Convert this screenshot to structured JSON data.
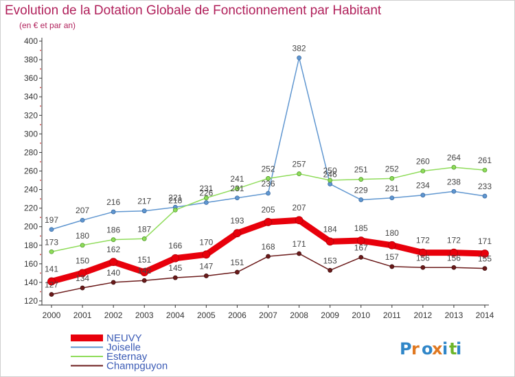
{
  "title": "Evolution de la Dotation Globale de Fonctionnement par Habitant",
  "subtitle": "(en € et par an)",
  "logo_text": "Proxiti",
  "chart_data": {
    "type": "line",
    "title": "Evolution de la Dotation Globale de Fonctionnement par Habitant",
    "subtitle": "(en € et par an)",
    "x": [
      "2000",
      "2001",
      "2002",
      "2003",
      "2004",
      "2005",
      "2006",
      "2007",
      "2008",
      "2009",
      "2010",
      "2011",
      "2012",
      "2013",
      "2014"
    ],
    "ylim": [
      120,
      400
    ],
    "yticks": [
      120,
      140,
      160,
      180,
      200,
      220,
      240,
      260,
      280,
      300,
      320,
      340,
      360,
      380,
      400
    ],
    "grid": false,
    "legend_position": "bottom-left",
    "series": [
      {
        "name": "NEUVY",
        "color": "#e8000b",
        "values": [
          141,
          150,
          162,
          151,
          166,
          170,
          193,
          205,
          207,
          184,
          185,
          180,
          172,
          172,
          171
        ]
      },
      {
        "name": "Joiselle",
        "color": "#5f96d0",
        "values": [
          197,
          207,
          216,
          217,
          221,
          226,
          231,
          236,
          382,
          246,
          229,
          231,
          234,
          238,
          233
        ]
      },
      {
        "name": "Esternay",
        "color": "#8fdc5a",
        "values": [
          173,
          180,
          186,
          187,
          218,
          231,
          241,
          252,
          257,
          250,
          251,
          252,
          260,
          264,
          261
        ]
      },
      {
        "name": "Champguyon",
        "color": "#6b1a1a",
        "values": [
          127,
          134,
          140,
          142,
          145,
          147,
          151,
          168,
          171,
          153,
          167,
          157,
          156,
          156,
          155
        ]
      }
    ]
  }
}
